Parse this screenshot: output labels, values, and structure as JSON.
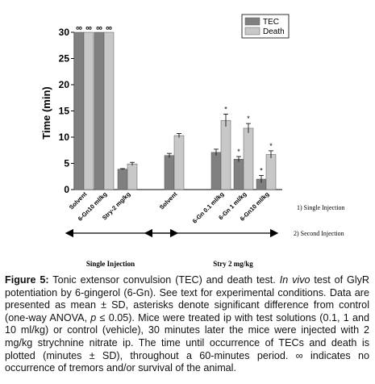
{
  "chart_data": {
    "type": "bar",
    "y_label": "Time (min)",
    "categories": [
      "Solvent",
      "6-Gn10 ml/kg",
      "Stry-2 mg/kg",
      "Solvent",
      "6-Gn 0.1 ml/kg",
      "6-Gn 1 ml/kg",
      "6-Gn10 ml/kg"
    ],
    "series": [
      {
        "name": "TEC",
        "color": "#808080",
        "values": [
          30,
          30,
          3.9,
          6.5,
          7.1,
          5.8,
          2.0
        ],
        "errors": [
          null,
          null,
          0.1,
          0.4,
          0.6,
          0.5,
          0.7
        ],
        "value_labels": [
          "∞",
          "∞",
          null,
          null,
          null,
          null,
          null
        ],
        "annotations": [
          null,
          null,
          null,
          null,
          null,
          "*",
          "*"
        ]
      },
      {
        "name": "Death",
        "color": "#c8c8c8",
        "values": [
          30,
          30,
          4.9,
          10.3,
          13.2,
          11.7,
          6.7
        ],
        "errors": [
          null,
          null,
          0.3,
          0.4,
          1.2,
          0.9,
          0.7
        ],
        "value_labels": [
          "∞",
          "∞",
          null,
          null,
          null,
          null,
          null
        ],
        "annotations": [
          null,
          null,
          null,
          null,
          "*",
          "*",
          "*"
        ]
      }
    ],
    "ylim": [
      0,
      30
    ],
    "yticks": [
      0,
      5,
      10,
      15,
      20,
      25,
      30
    ],
    "legend_position": "upper right",
    "notes": [
      "1) Single Injection",
      "2) Second Injection"
    ],
    "groups": [
      "Single Injection",
      "Stry 2 mg/kg"
    ]
  },
  "caption": {
    "label": "Figure 5:",
    "parts": [
      "Tonic extensor convulsion (TEC) and death test. ",
      "In vivo",
      " test of GlyR potentiation by 6-gingerol (6-Gn). See text for experimental conditions. Data are presented as mean ± SD, asterisks denote significant difference from control (one-way ANOVA, ",
      "p",
      " ≤ 0.05). Mice were treated ip with test solutions (0.1, 1 and 10 ml/kg) or control (vehicle), 30 minutes later the mice were injected with 2 mg/kg strychnine nitrate ip. The time until occurrence of TECs and death is plotted (minutes ± SD), throughout a 60-minutes period. ∞ indicates no occurrence of tremors and/or survival of the animal."
    ]
  }
}
